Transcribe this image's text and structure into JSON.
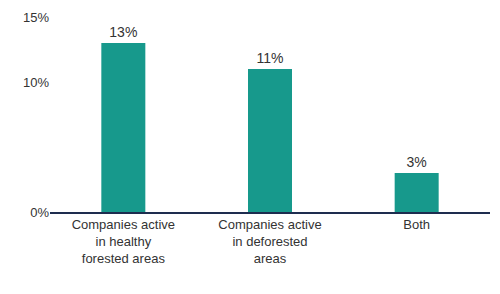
{
  "chart_data": {
    "type": "bar",
    "categories": [
      "Companies active in healthy forested areas",
      "Companies active in deforested areas",
      "Both"
    ],
    "values": [
      13,
      11,
      3
    ],
    "value_labels": [
      "13%",
      "11%",
      "3%"
    ],
    "color": "#17998c",
    "ylim": [
      0,
      15
    ],
    "yticks": [
      {
        "value": 0,
        "label": "0%"
      },
      {
        "value": 10,
        "label": "10%"
      },
      {
        "value": 15,
        "label": "15%"
      }
    ],
    "grid": false,
    "data_labels": true
  }
}
